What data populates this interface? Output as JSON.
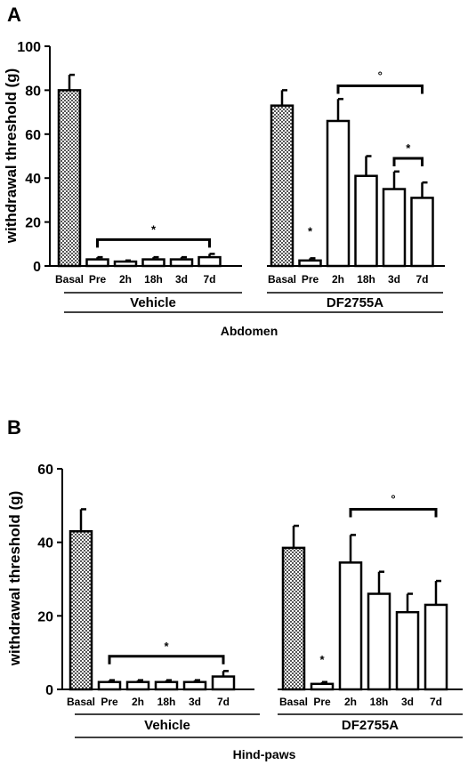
{
  "chart_data": [
    {
      "type": "bar",
      "panel": "A",
      "ylabel": "withdrawal threshold (g)",
      "ylim": [
        0,
        100
      ],
      "yticks": [
        "0",
        "20",
        "40",
        "60",
        "80",
        "100"
      ],
      "groups": [
        {
          "name": "Vehicle",
          "categories": [
            "Basal",
            "Pre",
            "2h",
            "18h",
            "3d",
            "7d"
          ],
          "values": [
            80,
            3,
            2,
            3,
            3,
            4
          ],
          "errors": [
            7,
            1,
            0.5,
            1,
            1,
            1.5
          ],
          "patterns": [
            "hatched",
            "open",
            "open",
            "open",
            "open",
            "open"
          ]
        },
        {
          "name": "DF2755A",
          "categories": [
            "Basal",
            "Pre",
            "2h",
            "18h",
            "3d",
            "7d"
          ],
          "values": [
            73,
            2.5,
            66,
            41,
            35,
            31
          ],
          "errors": [
            7,
            1,
            10,
            9,
            8,
            7
          ],
          "patterns": [
            "hatched",
            "open",
            "open",
            "open",
            "open",
            "open"
          ]
        }
      ],
      "section_label": "Abdomen",
      "annotations": [
        {
          "mark": "*",
          "group": 0,
          "from": 1,
          "to": 5,
          "at": 12
        },
        {
          "mark": "*",
          "group": 1,
          "over": 1,
          "at": 14
        },
        {
          "mark": "°",
          "group": 1,
          "from": 2,
          "to": 5,
          "at": 82
        },
        {
          "mark": "*",
          "group": 1,
          "from": 4,
          "to": 5,
          "at": 49
        }
      ]
    },
    {
      "type": "bar",
      "panel": "B",
      "ylabel": "withdrawal threshold (g)",
      "ylim": [
        0,
        60
      ],
      "yticks": [
        "0",
        "20",
        "40",
        "60"
      ],
      "groups": [
        {
          "name": "Vehicle",
          "categories": [
            "Basal",
            "Pre",
            "2h",
            "18h",
            "3d",
            "7d"
          ],
          "values": [
            43,
            2,
            2,
            2,
            2,
            3.5
          ],
          "errors": [
            6,
            0.5,
            0.5,
            0.5,
            0.5,
            1.5
          ],
          "patterns": [
            "hatched",
            "open",
            "open",
            "open",
            "open",
            "open"
          ]
        },
        {
          "name": "DF2755A",
          "categories": [
            "Basal",
            "Pre",
            "2h",
            "18h",
            "3d",
            "7d"
          ],
          "values": [
            38.5,
            1.5,
            34.5,
            26,
            21,
            23
          ],
          "errors": [
            6,
            0.5,
            7.5,
            6,
            5,
            6.5
          ],
          "patterns": [
            "hatched",
            "open",
            "open",
            "open",
            "open",
            "open"
          ]
        }
      ],
      "section_label": "Hind-paws",
      "annotations": [
        {
          "mark": "*",
          "group": 0,
          "from": 1,
          "to": 5,
          "at": 9
        },
        {
          "mark": "*",
          "group": 1,
          "over": 1,
          "at": 7
        },
        {
          "mark": "°",
          "group": 1,
          "from": 2,
          "to": 5,
          "at": 49
        }
      ]
    }
  ],
  "colors": {
    "ink": "#000000",
    "bar_fill": "#ffffff",
    "hatch": "#555555"
  }
}
